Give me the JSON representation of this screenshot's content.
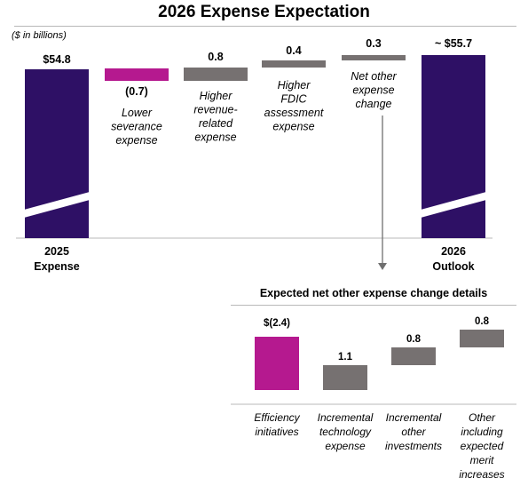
{
  "title": "2026 Expense Expectation",
  "units_note": "($ in billions)",
  "colors": {
    "total": "#2e1065",
    "negative": "#b5198f",
    "positive": "#767171",
    "rule": "#b8b8b8"
  },
  "chart_data": [
    {
      "type": "waterfall",
      "title": "2026 Expense Expectation",
      "unit": "($ in billions)",
      "categories": [
        "2025\nExpense",
        "Lower\nseverance\nexpense",
        "Higher\nrevenue-\nrelated\nexpense",
        "Higher\nFDIC\nassessment\nexpense",
        "Net other\nexpense\nchange",
        "2026\nOutlook"
      ],
      "values": [
        54.8,
        -0.7,
        0.8,
        0.4,
        0.3,
        55.7
      ],
      "kinds": [
        "total",
        "delta",
        "delta",
        "delta",
        "delta",
        "total"
      ],
      "value_labels": [
        "$54.8",
        "(0.7)",
        "0.8",
        "0.4",
        "0.3",
        "~ $55.7"
      ],
      "axis_break": true
    },
    {
      "type": "waterfall",
      "title": "Expected net other expense change details",
      "categories": [
        "Efficiency\ninitiatives",
        "Incremental\ntechnology\nexpense",
        "Incremental\nother\ninvestments",
        "Other\nincluding\nexpected\nmerit\nincreases"
      ],
      "values": [
        -2.4,
        1.1,
        0.8,
        0.8
      ],
      "value_labels": [
        "$(2.4)",
        "1.1",
        "0.8",
        "0.8"
      ]
    }
  ]
}
